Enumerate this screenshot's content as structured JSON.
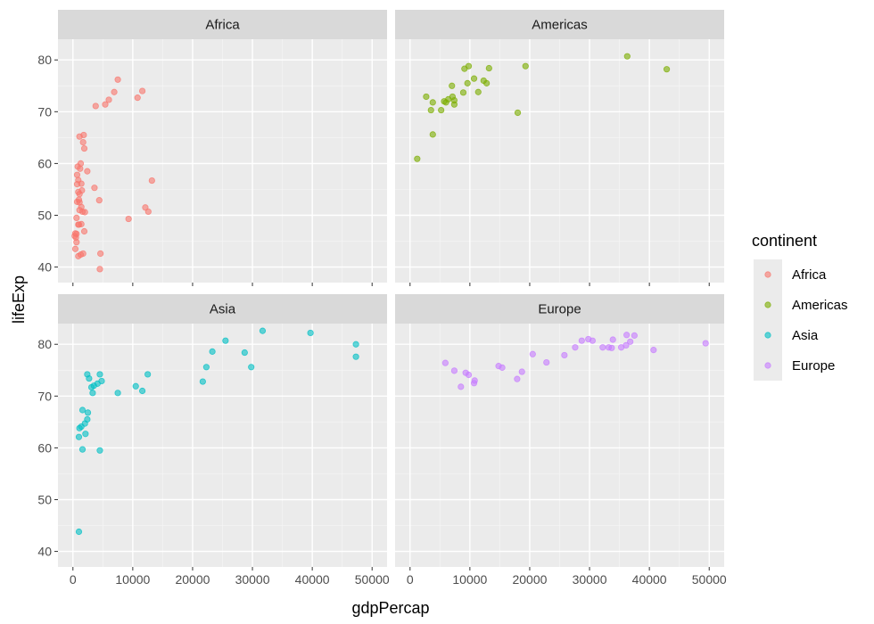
{
  "chart_data": {
    "type": "scatter",
    "facet_by": "continent",
    "xlabel": "gdpPercap",
    "ylabel": "lifeExp",
    "xlim": [
      -2500,
      52500
    ],
    "ylim": [
      37,
      84
    ],
    "x_ticks": [
      0,
      10000,
      20000,
      30000,
      40000,
      50000
    ],
    "x_tick_labels": [
      "0",
      "10000",
      "20000",
      "30000",
      "40000",
      "50000"
    ],
    "y_ticks": [
      40,
      50,
      60,
      70,
      80
    ],
    "y_tick_labels": [
      "40",
      "50",
      "60",
      "70",
      "80"
    ],
    "grid": true,
    "legend": {
      "title": "continent",
      "placement": "right",
      "entries": [
        "Africa",
        "Americas",
        "Asia",
        "Europe"
      ]
    },
    "colors": {
      "Africa": "#F8766D",
      "Americas": "#7CAE00",
      "Asia": "#00BFC4",
      "Europe": "#C77CFF"
    },
    "panels": [
      {
        "name": "Africa",
        "points": [
          [
            7500,
            76.2
          ],
          [
            11600,
            74.0
          ],
          [
            6900,
            73.8
          ],
          [
            10800,
            72.7
          ],
          [
            6000,
            72.3
          ],
          [
            5400,
            71.4
          ],
          [
            3800,
            71.1
          ],
          [
            1800,
            65.5
          ],
          [
            1100,
            65.2
          ],
          [
            1700,
            64.1
          ],
          [
            1900,
            62.9
          ],
          [
            1300,
            60.0
          ],
          [
            800,
            59.4
          ],
          [
            1200,
            59.0
          ],
          [
            2400,
            58.5
          ],
          [
            700,
            57.8
          ],
          [
            900,
            56.8
          ],
          [
            13200,
            56.7
          ],
          [
            700,
            56.0
          ],
          [
            1400,
            56.1
          ],
          [
            3600,
            55.3
          ],
          [
            1500,
            54.8
          ],
          [
            900,
            54.5
          ],
          [
            1100,
            54.1
          ],
          [
            1000,
            53.0
          ],
          [
            700,
            52.6
          ],
          [
            4400,
            52.9
          ],
          [
            1100,
            52.5
          ],
          [
            1400,
            51.6
          ],
          [
            12100,
            51.5
          ],
          [
            1100,
            51.0
          ],
          [
            1600,
            50.7
          ],
          [
            2000,
            50.6
          ],
          [
            12600,
            50.7
          ],
          [
            600,
            49.5
          ],
          [
            9300,
            49.3
          ],
          [
            1400,
            48.3
          ],
          [
            1000,
            48.2
          ],
          [
            900,
            48.2
          ],
          [
            1900,
            46.9
          ],
          [
            400,
            46.5
          ],
          [
            600,
            46.4
          ],
          [
            300,
            46.0
          ],
          [
            500,
            45.7
          ],
          [
            600,
            44.8
          ],
          [
            400,
            43.5
          ],
          [
            4600,
            42.6
          ],
          [
            1700,
            42.6
          ],
          [
            1300,
            42.4
          ],
          [
            900,
            42.1
          ],
          [
            4500,
            39.6
          ]
        ]
      },
      {
        "name": "Americas",
        "points": [
          [
            36300,
            80.7
          ],
          [
            42900,
            78.2
          ],
          [
            19300,
            78.8
          ],
          [
            13200,
            78.4
          ],
          [
            9800,
            78.8
          ],
          [
            9100,
            78.3
          ],
          [
            10700,
            76.4
          ],
          [
            12300,
            76.0
          ],
          [
            9600,
            75.5
          ],
          [
            12800,
            75.5
          ],
          [
            7000,
            75.0
          ],
          [
            11400,
            73.8
          ],
          [
            8900,
            73.7
          ],
          [
            2700,
            72.9
          ],
          [
            7100,
            72.9
          ],
          [
            6400,
            72.4
          ],
          [
            5700,
            72.0
          ],
          [
            7400,
            72.2
          ],
          [
            6000,
            71.8
          ],
          [
            3800,
            71.8
          ],
          [
            7400,
            71.4
          ],
          [
            3500,
            70.3
          ],
          [
            5200,
            70.3
          ],
          [
            18000,
            69.8
          ],
          [
            3800,
            65.6
          ],
          [
            1200,
            60.9
          ]
        ]
      },
      {
        "name": "Asia",
        "points": [
          [
            31700,
            82.6
          ],
          [
            39700,
            82.2
          ],
          [
            25500,
            80.7
          ],
          [
            47300,
            80.0
          ],
          [
            28700,
            78.4
          ],
          [
            23300,
            78.6
          ],
          [
            47300,
            77.6
          ],
          [
            22300,
            75.6
          ],
          [
            29800,
            75.6
          ],
          [
            2400,
            74.2
          ],
          [
            4500,
            74.2
          ],
          [
            12500,
            74.2
          ],
          [
            2700,
            73.4
          ],
          [
            4800,
            72.9
          ],
          [
            21700,
            72.8
          ],
          [
            4100,
            72.4
          ],
          [
            3500,
            72.0
          ],
          [
            10500,
            71.9
          ],
          [
            3100,
            71.7
          ],
          [
            11600,
            71.0
          ],
          [
            7500,
            70.6
          ],
          [
            3300,
            70.6
          ],
          [
            1600,
            67.3
          ],
          [
            2500,
            66.8
          ],
          [
            2400,
            65.5
          ],
          [
            2000,
            64.7
          ],
          [
            1400,
            64.1
          ],
          [
            1100,
            63.8
          ],
          [
            2100,
            62.7
          ],
          [
            1000,
            62.1
          ],
          [
            1600,
            59.7
          ],
          [
            4500,
            59.5
          ],
          [
            1000,
            43.8
          ]
        ]
      },
      {
        "name": "Europe",
        "points": [
          [
            36200,
            81.8
          ],
          [
            37500,
            81.7
          ],
          [
            28700,
            80.7
          ],
          [
            29800,
            81.0
          ],
          [
            33900,
            80.9
          ],
          [
            30500,
            80.7
          ],
          [
            36800,
            80.5
          ],
          [
            49400,
            80.2
          ],
          [
            27600,
            79.4
          ],
          [
            36100,
            79.8
          ],
          [
            35300,
            79.4
          ],
          [
            33700,
            79.3
          ],
          [
            32200,
            79.4
          ],
          [
            33200,
            79.4
          ],
          [
            40700,
            78.9
          ],
          [
            20500,
            78.1
          ],
          [
            25800,
            77.9
          ],
          [
            22800,
            76.5
          ],
          [
            5900,
            76.4
          ],
          [
            14800,
            75.8
          ],
          [
            15400,
            75.5
          ],
          [
            7400,
            74.9
          ],
          [
            18700,
            74.7
          ],
          [
            9300,
            74.5
          ],
          [
            9800,
            74.1
          ],
          [
            17900,
            73.3
          ],
          [
            10800,
            73.0
          ],
          [
            10700,
            72.5
          ],
          [
            8500,
            71.8
          ]
        ]
      }
    ]
  }
}
